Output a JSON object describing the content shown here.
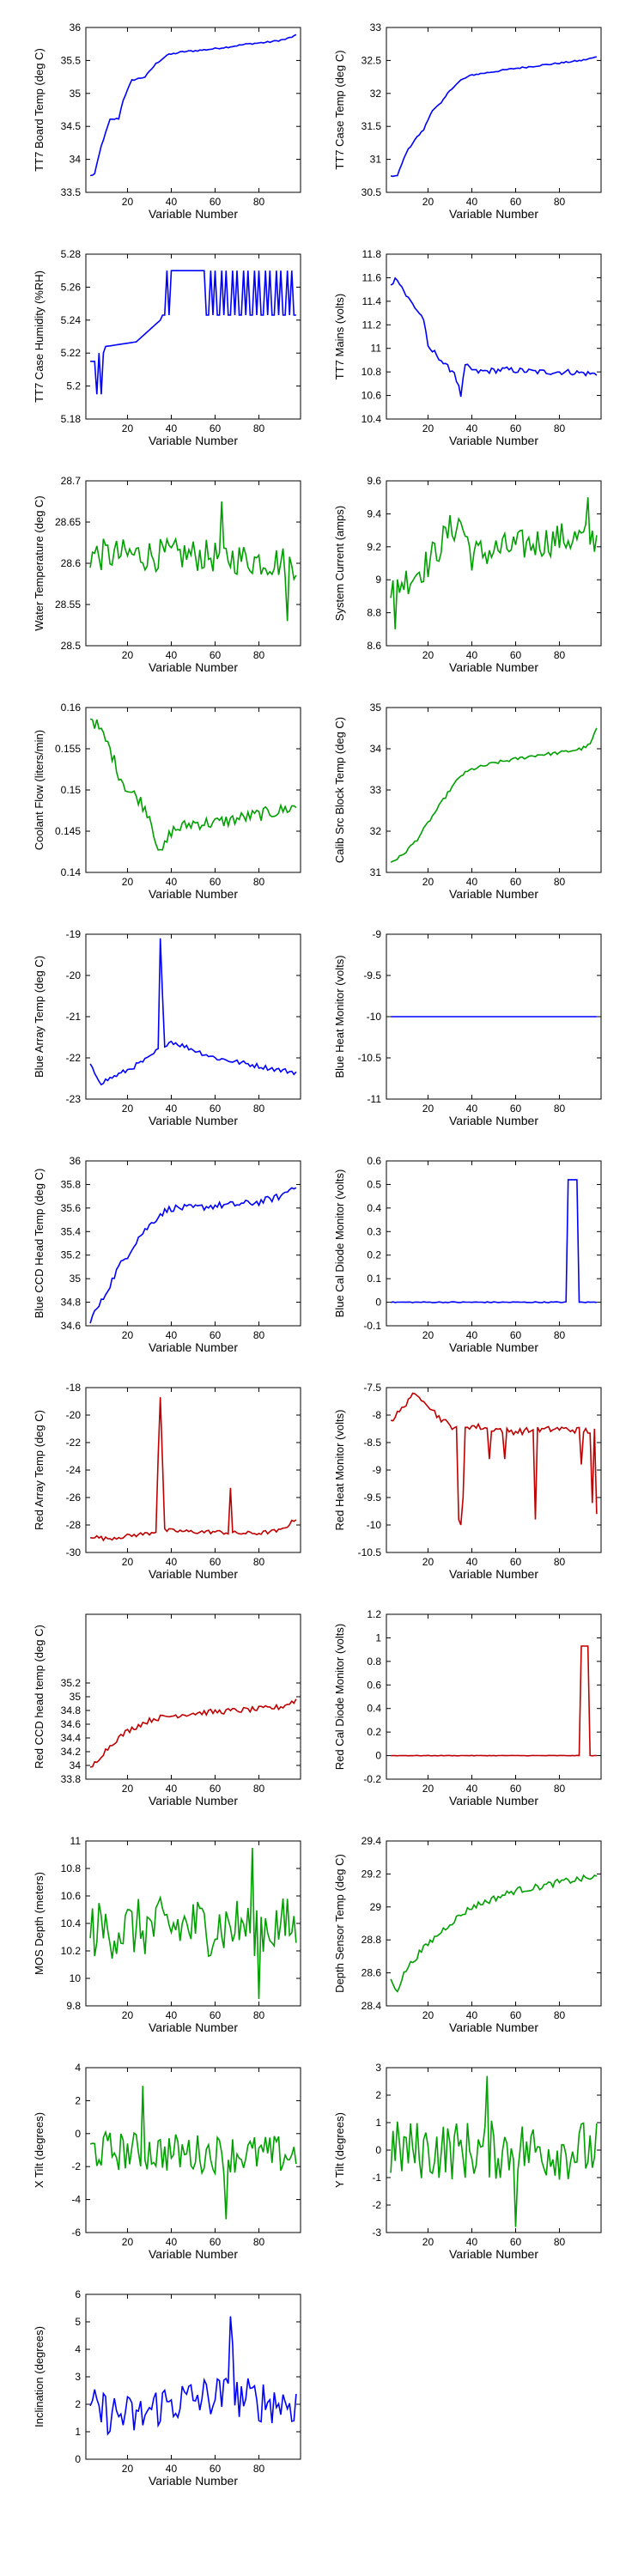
{
  "chart_data": [
    {
      "type": "line",
      "ylabel": "TT7 Board Temp (deg C)",
      "xlabel": "Variable Number",
      "ylim": [
        33.5,
        36
      ],
      "yticks": [
        "33.5",
        "34",
        "34.5",
        "35",
        "35.5",
        "36"
      ],
      "color": "#0000ff",
      "anchors": [
        [
          3,
          33.75
        ],
        [
          5,
          33.78
        ],
        [
          8,
          34.2
        ],
        [
          10,
          34.4
        ],
        [
          12,
          34.6
        ],
        [
          16,
          34.62
        ],
        [
          18,
          34.9
        ],
        [
          22,
          35.2
        ],
        [
          28,
          35.25
        ],
        [
          33,
          35.45
        ],
        [
          38,
          35.58
        ],
        [
          45,
          35.63
        ],
        [
          55,
          35.66
        ],
        [
          65,
          35.7
        ],
        [
          75,
          35.75
        ],
        [
          85,
          35.78
        ],
        [
          92,
          35.82
        ],
        [
          97,
          35.88
        ]
      ],
      "noise": 0.012
    },
    {
      "type": "line",
      "ylabel": "TT7 Case Temp (deg C)",
      "xlabel": "Variable Number",
      "ylim": [
        30.5,
        33
      ],
      "yticks": [
        "30.5",
        "31",
        "31.5",
        "32",
        "32.5",
        "33"
      ],
      "color": "#0000ff",
      "anchors": [
        [
          3,
          30.75
        ],
        [
          6,
          30.75
        ],
        [
          10,
          31.1
        ],
        [
          14,
          31.3
        ],
        [
          18,
          31.45
        ],
        [
          22,
          31.75
        ],
        [
          26,
          31.85
        ],
        [
          30,
          32.05
        ],
        [
          35,
          32.2
        ],
        [
          40,
          32.28
        ],
        [
          50,
          32.33
        ],
        [
          60,
          32.38
        ],
        [
          70,
          32.42
        ],
        [
          80,
          32.46
        ],
        [
          90,
          32.5
        ],
        [
          97,
          32.55
        ]
      ],
      "noise": 0.012
    },
    {
      "type": "line",
      "ylabel": "TT7 Case Humidity (%RH)",
      "xlabel": "Variable Number",
      "ylim": [
        5.18,
        5.28
      ],
      "yticks": [
        "5.18",
        "5.2",
        "5.22",
        "5.24",
        "5.26",
        "5.28"
      ],
      "color": "#0000ff",
      "pattern": "humidity"
    },
    {
      "type": "line",
      "ylabel": "TT7 Mains  (volts)",
      "xlabel": "Variable Number",
      "ylim": [
        10.4,
        11.8
      ],
      "yticks": [
        "10.4",
        "10.6",
        "10.8",
        "11",
        "11.2",
        "11.4",
        "11.6",
        "11.8"
      ],
      "color": "#0000ff",
      "anchors": [
        [
          3,
          11.55
        ],
        [
          6,
          11.6
        ],
        [
          10,
          11.45
        ],
        [
          14,
          11.35
        ],
        [
          18,
          11.25
        ],
        [
          20,
          11.0
        ],
        [
          24,
          10.95
        ],
        [
          28,
          10.85
        ],
        [
          32,
          10.8
        ],
        [
          35,
          10.6
        ],
        [
          37,
          10.85
        ],
        [
          42,
          10.8
        ],
        [
          55,
          10.82
        ],
        [
          70,
          10.8
        ],
        [
          85,
          10.8
        ],
        [
          97,
          10.78
        ]
      ],
      "noise": 0.025
    },
    {
      "type": "line",
      "ylabel": "Water Temperature (deg C)",
      "xlabel": "Variable Number",
      "ylim": [
        28.5,
        28.7
      ],
      "yticks": [
        "28.5",
        "28.55",
        "28.6",
        "28.65",
        "28.7"
      ],
      "color": "#00a000",
      "anchors": [
        [
          3,
          28.61
        ],
        [
          50,
          28.61
        ],
        [
          97,
          28.6
        ]
      ],
      "noise": 0.02,
      "spikes": [
        [
          63,
          28.675
        ],
        [
          93,
          28.53
        ]
      ]
    },
    {
      "type": "line",
      "ylabel": "System Current (amps)",
      "xlabel": "Variable Number",
      "ylim": [
        8.6,
        9.6
      ],
      "yticks": [
        "8.6",
        "8.8",
        "9",
        "9.2",
        "9.4",
        "9.6"
      ],
      "color": "#00a000",
      "anchors": [
        [
          3,
          8.95
        ],
        [
          10,
          9.0
        ],
        [
          20,
          9.1
        ],
        [
          30,
          9.3
        ],
        [
          35,
          9.35
        ],
        [
          40,
          9.15
        ],
        [
          60,
          9.2
        ],
        [
          80,
          9.25
        ],
        [
          97,
          9.25
        ]
      ],
      "noise": 0.1,
      "spikes": [
        [
          5,
          8.7
        ],
        [
          93,
          9.5
        ]
      ]
    },
    {
      "type": "line",
      "ylabel": "Coolant Flow (liters/min)",
      "xlabel": "Variable Number",
      "ylim": [
        0.14,
        0.16
      ],
      "yticks": [
        "0.14",
        "0.145",
        "0.15",
        "0.155",
        "0.16"
      ],
      "color": "#00a000",
      "anchors": [
        [
          3,
          0.159
        ],
        [
          8,
          0.157
        ],
        [
          12,
          0.155
        ],
        [
          16,
          0.152
        ],
        [
          20,
          0.15
        ],
        [
          25,
          0.149
        ],
        [
          30,
          0.147
        ],
        [
          35,
          0.142
        ],
        [
          40,
          0.145
        ],
        [
          50,
          0.146
        ],
        [
          60,
          0.146
        ],
        [
          70,
          0.1465
        ],
        [
          80,
          0.147
        ],
        [
          90,
          0.1475
        ],
        [
          97,
          0.148
        ]
      ],
      "noise": 0.0008
    },
    {
      "type": "line",
      "ylabel": "Calib Src Block Temp (deg C)",
      "xlabel": "Variable Number",
      "ylim": [
        31,
        35
      ],
      "yticks": [
        "31",
        "32",
        "33",
        "34",
        "35"
      ],
      "color": "#00a000",
      "anchors": [
        [
          3,
          31.25
        ],
        [
          8,
          31.4
        ],
        [
          15,
          31.8
        ],
        [
          20,
          32.2
        ],
        [
          25,
          32.6
        ],
        [
          30,
          33.0
        ],
        [
          35,
          33.35
        ],
        [
          40,
          33.5
        ],
        [
          50,
          33.65
        ],
        [
          60,
          33.75
        ],
        [
          70,
          33.85
        ],
        [
          80,
          33.9
        ],
        [
          90,
          34.0
        ],
        [
          94,
          34.1
        ],
        [
          97,
          34.5
        ]
      ],
      "noise": 0.04
    },
    {
      "type": "line",
      "ylabel": "Blue Array Temp (deg C)",
      "xlabel": "Variable Number",
      "ylim": [
        -23,
        -19
      ],
      "yticks": [
        "-23",
        "-22",
        "-21",
        "-20",
        "-19"
      ],
      "color": "#0000ff",
      "anchors": [
        [
          3,
          -22.2
        ],
        [
          8,
          -22.6
        ],
        [
          12,
          -22.5
        ],
        [
          20,
          -22.3
        ],
        [
          30,
          -22.0
        ],
        [
          34,
          -21.8
        ],
        [
          36,
          -21.7
        ],
        [
          40,
          -21.6
        ],
        [
          50,
          -21.8
        ],
        [
          60,
          -22.0
        ],
        [
          70,
          -22.1
        ],
        [
          80,
          -22.2
        ],
        [
          90,
          -22.3
        ],
        [
          97,
          -22.35
        ]
      ],
      "noise": 0.06,
      "spikes": [
        [
          35,
          -19.1
        ],
        [
          36,
          -20.5
        ]
      ]
    },
    {
      "type": "line",
      "ylabel": "Blue Heat Monitor (volts)",
      "xlabel": "Variable Number",
      "ylim": [
        -11,
        -9
      ],
      "yticks": [
        "-11",
        "-10.5",
        "-10",
        "-9.5",
        "-9"
      ],
      "color": "#0000ff",
      "anchors": [
        [
          1,
          -10
        ],
        [
          99,
          -10
        ]
      ],
      "noise": 0
    },
    {
      "type": "line",
      "ylabel": "Blue CCD Head Temp (deg C)",
      "xlabel": "Variable Number",
      "ylim": [
        34.6,
        36
      ],
      "yticks": [
        "34.6",
        "34.8",
        "35",
        "35.2",
        "35.4",
        "35.6",
        "35.8",
        "36"
      ],
      "color": "#0000ff",
      "anchors": [
        [
          3,
          34.65
        ],
        [
          8,
          34.8
        ],
        [
          12,
          34.95
        ],
        [
          16,
          35.1
        ],
        [
          20,
          35.2
        ],
        [
          25,
          35.35
        ],
        [
          30,
          35.45
        ],
        [
          35,
          35.55
        ],
        [
          40,
          35.6
        ],
        [
          50,
          35.6
        ],
        [
          60,
          35.62
        ],
        [
          70,
          35.63
        ],
        [
          80,
          35.65
        ],
        [
          90,
          35.7
        ],
        [
          97,
          35.8
        ]
      ],
      "noise": 0.03
    },
    {
      "type": "line",
      "ylabel": "Blue Cal Diode Monitor (volts)",
      "xlabel": "Variable Number",
      "ylim": [
        -0.1,
        0.6
      ],
      "yticks": [
        "-0.1",
        "0",
        "0.1",
        "0.2",
        "0.3",
        "0.4",
        "0.5",
        "0.6"
      ],
      "color": "#0000ff",
      "pattern": "pulse",
      "pulse": [
        84,
        88,
        0.52
      ]
    },
    {
      "type": "line",
      "ylabel": "Red Array Temp (deg C)",
      "xlabel": "Variable Number",
      "ylim": [
        -30,
        -18
      ],
      "yticks": [
        "-30",
        "-28",
        "-26",
        "-24",
        "-22",
        "-20",
        "-18"
      ],
      "color": "#c00000",
      "anchors": [
        [
          3,
          -28.8
        ],
        [
          10,
          -29.0
        ],
        [
          20,
          -28.8
        ],
        [
          30,
          -28.6
        ],
        [
          34,
          -28.4
        ],
        [
          38,
          -28.4
        ],
        [
          50,
          -28.5
        ],
        [
          60,
          -28.5
        ],
        [
          70,
          -28.6
        ],
        [
          80,
          -28.6
        ],
        [
          90,
          -28.4
        ],
        [
          95,
          -27.8
        ],
        [
          97,
          -27.5
        ]
      ],
      "noise": 0.15,
      "spikes": [
        [
          34,
          -23
        ],
        [
          35,
          -18.7
        ],
        [
          36,
          -23.5
        ],
        [
          67,
          -25.3
        ]
      ]
    },
    {
      "type": "line",
      "ylabel": "Red Heat Monitor (volts)",
      "xlabel": "Variable Number",
      "ylim": [
        -10.5,
        -7.5
      ],
      "yticks": [
        "-10.5",
        "-10",
        "-9.5",
        "-9",
        "-8.5",
        "-8",
        "-7.5"
      ],
      "color": "#c00000",
      "anchors": [
        [
          3,
          -8.1
        ],
        [
          8,
          -7.9
        ],
        [
          12,
          -7.65
        ],
        [
          18,
          -7.7
        ],
        [
          24,
          -8.0
        ],
        [
          30,
          -8.2
        ],
        [
          40,
          -8.2
        ],
        [
          60,
          -8.3
        ],
        [
          80,
          -8.25
        ],
        [
          97,
          -8.3
        ]
      ],
      "noise": 0.06,
      "spikes": [
        [
          34,
          -9.9
        ],
        [
          35,
          -10.0
        ],
        [
          36,
          -9.5
        ],
        [
          48,
          -8.8
        ],
        [
          55,
          -8.8
        ],
        [
          69,
          -9.9
        ],
        [
          90,
          -8.9
        ],
        [
          95,
          -9.6
        ],
        [
          97,
          -9.8
        ]
      ]
    },
    {
      "type": "line",
      "ylabel": "Red CCD head temp (deg C)",
      "xlabel": "Variable Number",
      "ylim": [
        33.8,
        36.2
      ],
      "yticks": [
        "33.8",
        "34",
        "34.2",
        "34.4",
        "34.6",
        "34.8",
        "35",
        "35.2"
      ],
      "color": "#c00000",
      "anchors": [
        [
          3,
          33.95
        ],
        [
          8,
          34.15
        ],
        [
          14,
          34.35
        ],
        [
          20,
          34.5
        ],
        [
          26,
          34.6
        ],
        [
          32,
          34.68
        ],
        [
          40,
          34.72
        ],
        [
          50,
          34.76
        ],
        [
          60,
          34.78
        ],
        [
          70,
          34.8
        ],
        [
          80,
          34.82
        ],
        [
          90,
          34.85
        ],
        [
          97,
          34.95
        ]
      ],
      "noise": 0.04
    },
    {
      "type": "line",
      "ylabel": "Red Cal Diode Monitor (volts)",
      "xlabel": "Variable Number",
      "ylim": [
        -0.2,
        1.2
      ],
      "yticks": [
        "-0.2",
        "0",
        "0.2",
        "0.4",
        "0.6",
        "0.8",
        "1",
        "1.2"
      ],
      "color": "#c00000",
      "pattern": "pulse",
      "pulse": [
        90,
        93,
        0.93
      ]
    },
    {
      "type": "line",
      "ylabel": "MOS Depth  (meters)",
      "xlabel": "Variable Number",
      "ylim": [
        9.8,
        11
      ],
      "yticks": [
        "9.8",
        "10",
        "10.2",
        "10.4",
        "10.6",
        "10.8",
        "11"
      ],
      "color": "#00a000",
      "anchors": [
        [
          3,
          10.35
        ],
        [
          50,
          10.38
        ],
        [
          97,
          10.38
        ]
      ],
      "noise": 0.22,
      "spikes": [
        [
          77,
          10.95
        ],
        [
          80,
          9.85
        ]
      ]
    },
    {
      "type": "line",
      "ylabel": "Depth Sensor Temp (deg C)",
      "xlabel": "Variable Number",
      "ylim": [
        28.4,
        29.4
      ],
      "yticks": [
        "28.4",
        "28.6",
        "28.8",
        "29",
        "29.2",
        "29.4"
      ],
      "color": "#00a000",
      "anchors": [
        [
          3,
          28.55
        ],
        [
          6,
          28.5
        ],
        [
          10,
          28.62
        ],
        [
          16,
          28.72
        ],
        [
          22,
          28.8
        ],
        [
          30,
          28.9
        ],
        [
          40,
          29.0
        ],
        [
          50,
          29.05
        ],
        [
          60,
          29.1
        ],
        [
          70,
          29.12
        ],
        [
          80,
          29.15
        ],
        [
          90,
          29.17
        ],
        [
          97,
          29.18
        ]
      ],
      "noise": 0.02
    },
    {
      "type": "line",
      "ylabel": "X Tilt  (degrees)",
      "xlabel": "Variable Number",
      "ylim": [
        -6,
        4
      ],
      "yticks": [
        "-6",
        "-4",
        "-2",
        "0",
        "2",
        "4"
      ],
      "color": "#00a000",
      "anchors": [
        [
          3,
          -1
        ],
        [
          50,
          -1.2
        ],
        [
          97,
          -1.3
        ]
      ],
      "noise": 1.2,
      "spikes": [
        [
          27,
          2.9
        ],
        [
          65,
          -5.2
        ]
      ]
    },
    {
      "type": "line",
      "ylabel": "Y Tilt  (degrees)",
      "xlabel": "Variable Number",
      "ylim": [
        -3,
        3
      ],
      "yticks": [
        "-3",
        "-2",
        "-1",
        "0",
        "1",
        "2",
        "3"
      ],
      "color": "#00a000",
      "anchors": [
        [
          3,
          0
        ],
        [
          50,
          0
        ],
        [
          97,
          0
        ]
      ],
      "noise": 1.1,
      "spikes": [
        [
          47,
          2.7
        ],
        [
          60,
          -2.8
        ]
      ]
    },
    {
      "type": "line",
      "ylabel": "Inclination  (degrees)",
      "xlabel": "Variable Number",
      "ylim": [
        0,
        6
      ],
      "yticks": [
        "0",
        "1",
        "2",
        "3",
        "4",
        "5",
        "6"
      ],
      "color": "#0000ff",
      "anchors": [
        [
          3,
          1.8
        ],
        [
          25,
          1.5
        ],
        [
          35,
          2.0
        ],
        [
          60,
          2.3
        ],
        [
          97,
          2.0
        ]
      ],
      "noise": 0.8,
      "spikes": [
        [
          67,
          5.2
        ],
        [
          68,
          4.2
        ]
      ]
    }
  ],
  "xticks": [
    "20",
    "40",
    "60",
    "80"
  ]
}
